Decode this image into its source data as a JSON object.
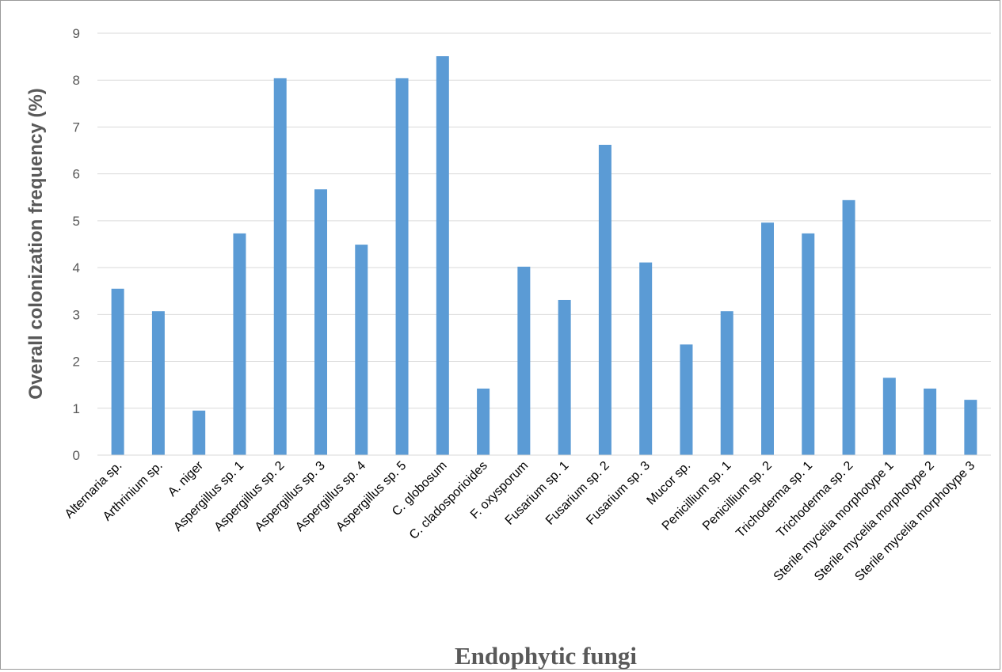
{
  "chart_data": {
    "type": "bar",
    "title": "",
    "xlabel": "Endophytic fungi",
    "ylabel": "Overall colonization frequency (%)",
    "ylim": [
      0,
      9
    ],
    "yticks": [
      0,
      1,
      2,
      3,
      4,
      5,
      6,
      7,
      8,
      9
    ],
    "grid": true,
    "legend": "none",
    "bar_color": "#5b9bd5",
    "categories": [
      "Alternaria sp.",
      "Arthrinium sp.",
      "A. niger",
      "Aspergillus sp. 1",
      "Aspergillus sp. 2",
      "Aspergillus sp. 3",
      "Aspergillus sp. 4",
      "Aspergillus sp. 5",
      "C. globosum",
      "C. cladosporioides",
      "F. oxysporum",
      "Fusarium sp. 1",
      "Fusarium sp. 2",
      "Fusarium sp. 3",
      "Mucor sp.",
      "Penicillium sp. 1",
      "Penicillium sp. 2",
      "Trichoderma sp. 1",
      "Trichoderma sp. 2",
      "Sterile mycelia morphotype 1",
      "Sterile mycelia morphotype 2",
      "Sterile mycelia morphotype 3"
    ],
    "values": [
      3.55,
      3.07,
      0.95,
      4.73,
      8.04,
      5.67,
      4.49,
      8.04,
      8.51,
      1.42,
      4.02,
      3.31,
      6.62,
      4.11,
      2.36,
      3.07,
      4.96,
      4.73,
      5.44,
      1.65,
      1.42,
      1.18
    ]
  }
}
